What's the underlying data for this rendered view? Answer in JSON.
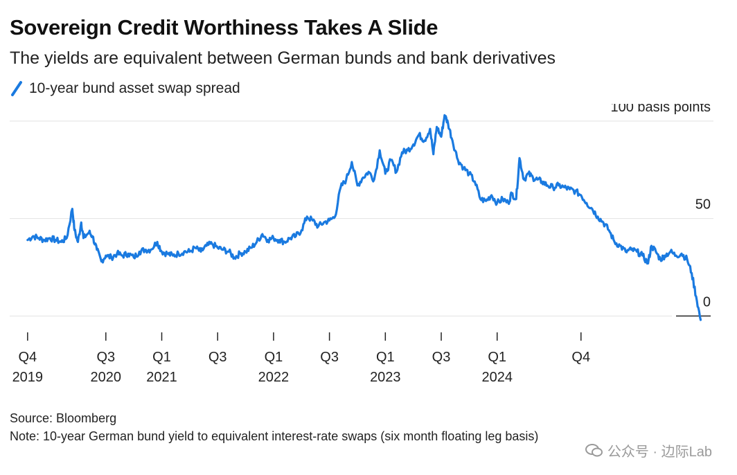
{
  "chart_data": {
    "type": "line",
    "title": "Sovereign Credit Worthiness Takes A Slide",
    "subtitle": "The yields are equivalent between German bunds and bank derivatives",
    "series": [
      {
        "name": "10-year bund asset swap spread",
        "color": "#1a7ae0",
        "points": [
          [
            2019.8,
            39
          ],
          [
            2019.85,
            41
          ],
          [
            2019.9,
            40
          ],
          [
            2019.95,
            39
          ],
          [
            2020.0,
            40
          ],
          [
            2020.05,
            39
          ],
          [
            2020.1,
            38
          ],
          [
            2020.15,
            40
          ],
          [
            2020.2,
            55
          ],
          [
            2020.22,
            44
          ],
          [
            2020.25,
            38
          ],
          [
            2020.28,
            48
          ],
          [
            2020.3,
            40
          ],
          [
            2020.35,
            43
          ],
          [
            2020.38,
            41
          ],
          [
            2020.42,
            34
          ],
          [
            2020.46,
            28
          ],
          [
            2020.5,
            31
          ],
          [
            2020.55,
            30
          ],
          [
            2020.6,
            32
          ],
          [
            2020.65,
            31
          ],
          [
            2020.7,
            32
          ],
          [
            2020.75,
            30
          ],
          [
            2020.8,
            33
          ],
          [
            2020.85,
            34
          ],
          [
            2020.9,
            34
          ],
          [
            2020.96,
            38
          ],
          [
            2021.0,
            33
          ],
          [
            2021.05,
            32
          ],
          [
            2021.1,
            31
          ],
          [
            2021.15,
            32
          ],
          [
            2021.2,
            33
          ],
          [
            2021.25,
            33
          ],
          [
            2021.3,
            35
          ],
          [
            2021.35,
            33
          ],
          [
            2021.4,
            36
          ],
          [
            2021.45,
            37
          ],
          [
            2021.5,
            35
          ],
          [
            2021.55,
            34
          ],
          [
            2021.6,
            33
          ],
          [
            2021.65,
            30
          ],
          [
            2021.7,
            32
          ],
          [
            2021.75,
            33
          ],
          [
            2021.8,
            35
          ],
          [
            2021.85,
            38
          ],
          [
            2021.9,
            42
          ],
          [
            2021.95,
            39
          ],
          [
            2022.0,
            40
          ],
          [
            2022.05,
            39
          ],
          [
            2022.1,
            38
          ],
          [
            2022.15,
            40
          ],
          [
            2022.2,
            41
          ],
          [
            2022.25,
            44
          ],
          [
            2022.3,
            51
          ],
          [
            2022.35,
            49
          ],
          [
            2022.4,
            46
          ],
          [
            2022.45,
            48
          ],
          [
            2022.5,
            49
          ],
          [
            2022.55,
            51
          ],
          [
            2022.6,
            66
          ],
          [
            2022.65,
            70
          ],
          [
            2022.7,
            79
          ],
          [
            2022.75,
            67
          ],
          [
            2022.8,
            71
          ],
          [
            2022.85,
            74
          ],
          [
            2022.9,
            70
          ],
          [
            2022.95,
            85
          ],
          [
            2023.0,
            73
          ],
          [
            2023.05,
            80
          ],
          [
            2023.1,
            74
          ],
          [
            2023.15,
            84
          ],
          [
            2023.2,
            85
          ],
          [
            2023.25,
            88
          ],
          [
            2023.3,
            93
          ],
          [
            2023.35,
            90
          ],
          [
            2023.4,
            96
          ],
          [
            2023.43,
            83
          ],
          [
            2023.46,
            97
          ],
          [
            2023.5,
            92
          ],
          [
            2023.53,
            103
          ],
          [
            2023.56,
            99
          ],
          [
            2023.6,
            90
          ],
          [
            2023.65,
            80
          ],
          [
            2023.7,
            76
          ],
          [
            2023.75,
            73
          ],
          [
            2023.8,
            69
          ],
          [
            2023.85,
            60
          ],
          [
            2023.9,
            59
          ],
          [
            2023.95,
            62
          ],
          [
            2024.0,
            58
          ],
          [
            2024.05,
            60
          ],
          [
            2024.1,
            58
          ],
          [
            2024.13,
            63
          ],
          [
            2024.17,
            60
          ],
          [
            2024.2,
            81
          ],
          [
            2024.24,
            70
          ],
          [
            2024.28,
            73
          ],
          [
            2024.32,
            71
          ],
          [
            2024.36,
            70
          ],
          [
            2024.4,
            69
          ],
          [
            2024.45,
            67
          ],
          [
            2024.5,
            66
          ],
          [
            2024.55,
            67
          ],
          [
            2024.6,
            66
          ],
          [
            2024.65,
            65
          ],
          [
            2024.7,
            64
          ],
          [
            2024.75,
            62
          ],
          [
            2024.8,
            58
          ],
          [
            2024.85,
            55
          ],
          [
            2024.9,
            51
          ],
          [
            2024.95,
            48
          ],
          [
            2025.0,
            44
          ],
          [
            2025.05,
            38
          ],
          [
            2025.1,
            36
          ],
          [
            2025.15,
            33
          ],
          [
            2025.2,
            34
          ],
          [
            2025.25,
            33
          ],
          [
            2025.3,
            31
          ],
          [
            2025.35,
            27
          ],
          [
            2025.38,
            36
          ],
          [
            2025.42,
            33
          ],
          [
            2025.46,
            29
          ],
          [
            2025.5,
            31
          ],
          [
            2025.55,
            33
          ],
          [
            2025.6,
            31
          ],
          [
            2025.65,
            32
          ],
          [
            2025.7,
            29
          ],
          [
            2025.74,
            22
          ],
          [
            2025.78,
            10
          ],
          [
            2025.82,
            -2
          ]
        ]
      }
    ],
    "x_ticks": [
      {
        "value": 2019.8,
        "label": "Q4",
        "year": "2019"
      },
      {
        "value": 2020.5,
        "label": "Q3",
        "year": "2020"
      },
      {
        "value": 2021.0,
        "label": "Q1",
        "year": "2021"
      },
      {
        "value": 2021.5,
        "label": "Q3",
        "year": ""
      },
      {
        "value": 2022.0,
        "label": "Q1",
        "year": "2022"
      },
      {
        "value": 2022.5,
        "label": "Q3",
        "year": ""
      },
      {
        "value": 2023.0,
        "label": "Q1",
        "year": "2023"
      },
      {
        "value": 2023.5,
        "label": "Q3",
        "year": ""
      },
      {
        "value": 2024.0,
        "label": "Q1",
        "year": "2024"
      },
      {
        "value": 2024.75,
        "label": "Q4",
        "year": ""
      }
    ],
    "y_ticks": [
      {
        "value": 100,
        "label": "100 basis points"
      },
      {
        "value": 50,
        "label": "50"
      },
      {
        "value": 0,
        "label": "0"
      }
    ],
    "xlim": [
      2019.64,
      2025.91
    ],
    "ylim": [
      -2,
      106
    ],
    "legend": "top-left",
    "grid": true
  },
  "legend_label": "10-year bund asset swap spread",
  "source": "Source: Bloomberg",
  "note": "Note: 10-year German bund yield to equivalent interest-rate swaps (six month floating leg basis)",
  "watermark": "公众号 · 边际Lab",
  "colors": {
    "line": "#1a7ae0",
    "grid": "#e2e2e2",
    "axis": "#222222",
    "text": "#111111"
  }
}
